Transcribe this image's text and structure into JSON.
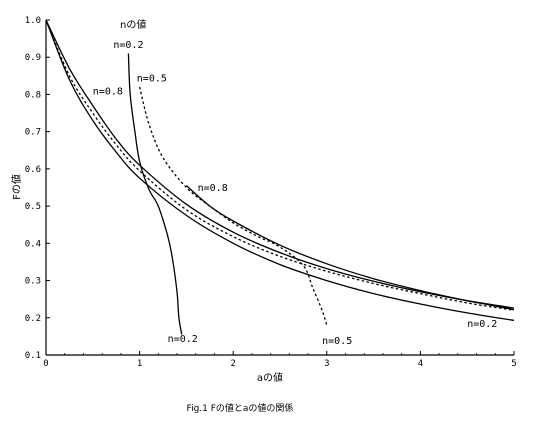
{
  "chart_data": {
    "type": "line",
    "caption": "Fig.1 Fの値とaの値の関係",
    "xlabel": "aの値",
    "ylabel": "Fの値",
    "legend_title": "nの値",
    "xlim": [
      0,
      5
    ],
    "ylim": [
      0.1,
      1.0
    ],
    "x_ticks": [
      0,
      1,
      2,
      3,
      4,
      5
    ],
    "x_tick_labels": [
      "0",
      "1",
      "2",
      "3",
      "4",
      "5"
    ],
    "y_ticks": [
      0.1,
      0.2,
      0.3,
      0.4,
      0.5,
      0.6,
      0.7,
      0.8,
      0.9,
      1.0
    ],
    "y_tick_labels": [
      "0.1",
      "0.2",
      "0.3",
      "0.4",
      "0.5",
      "0.6",
      "0.7",
      "0.8",
      "0.9",
      "1.0"
    ],
    "grid": false,
    "series": [
      {
        "id": "n02_lower",
        "style": "solid",
        "x": [
          0,
          0.25,
          0.5,
          0.75,
          1.0,
          1.5,
          2.0,
          2.5,
          3.0,
          3.5,
          4.0,
          4.5,
          5.0
        ],
        "y": [
          1.0,
          0.84,
          0.73,
          0.645,
          0.575,
          0.475,
          0.4,
          0.343,
          0.3,
          0.265,
          0.237,
          0.213,
          0.193
        ]
      },
      {
        "id": "n02_upper",
        "style": "solid",
        "x": [
          0.88,
          0.9,
          0.95,
          1.0,
          1.1,
          1.2,
          1.3,
          1.35,
          1.4,
          1.42,
          1.45
        ],
        "y": [
          0.91,
          0.8,
          0.7,
          0.62,
          0.545,
          0.5,
          0.42,
          0.36,
          0.27,
          0.2,
          0.155
        ]
      },
      {
        "id": "n08_lower",
        "style": "solid",
        "x": [
          0,
          0.25,
          0.5,
          0.75,
          1.0,
          1.5,
          2.0,
          2.5,
          3.0,
          3.5,
          4.0,
          4.5,
          5.0
        ],
        "y": [
          1.0,
          0.87,
          0.77,
          0.68,
          0.61,
          0.505,
          0.43,
          0.375,
          0.332,
          0.298,
          0.27,
          0.246,
          0.226
        ]
      },
      {
        "id": "n08_upper",
        "style": "solid",
        "x": [
          1.5,
          1.75,
          2.0,
          2.5,
          3.0,
          3.5,
          4.0,
          4.5,
          5.0
        ],
        "y": [
          0.555,
          0.5,
          0.46,
          0.395,
          0.345,
          0.305,
          0.273,
          0.246,
          0.222
        ]
      },
      {
        "id": "n05_lower",
        "style": "dotted",
        "x": [
          0,
          0.25,
          0.5,
          0.75,
          1.0,
          1.5,
          2.0,
          2.5,
          3.0,
          3.5,
          4.0,
          4.5,
          5.0
        ],
        "y": [
          1.0,
          0.85,
          0.75,
          0.665,
          0.595,
          0.49,
          0.418,
          0.365,
          0.325,
          0.292,
          0.265,
          0.24,
          0.22
        ]
      },
      {
        "id": "n05_upper",
        "style": "dotted",
        "x": [
          1.0,
          1.1,
          1.25,
          1.5,
          1.75,
          2.0,
          2.25,
          2.5,
          2.75,
          2.85,
          2.95,
          3.0
        ],
        "y": [
          0.82,
          0.72,
          0.63,
          0.55,
          0.5,
          0.455,
          0.42,
          0.39,
          0.34,
          0.28,
          0.22,
          0.18
        ]
      }
    ],
    "annotations": [
      {
        "text": "n=0.2",
        "x": 0.72,
        "y": 0.925
      },
      {
        "text": "n=0.5",
        "x": 0.97,
        "y": 0.835
      },
      {
        "text": "n=0.8",
        "x": 0.5,
        "y": 0.8
      },
      {
        "text": "n=0.8",
        "x": 1.62,
        "y": 0.54
      },
      {
        "text": "n=0.2",
        "x": 1.3,
        "y": 0.135
      },
      {
        "text": "n=0.5",
        "x": 2.95,
        "y": 0.13
      },
      {
        "text": "n=0.2",
        "x": 4.5,
        "y": 0.175
      }
    ]
  }
}
